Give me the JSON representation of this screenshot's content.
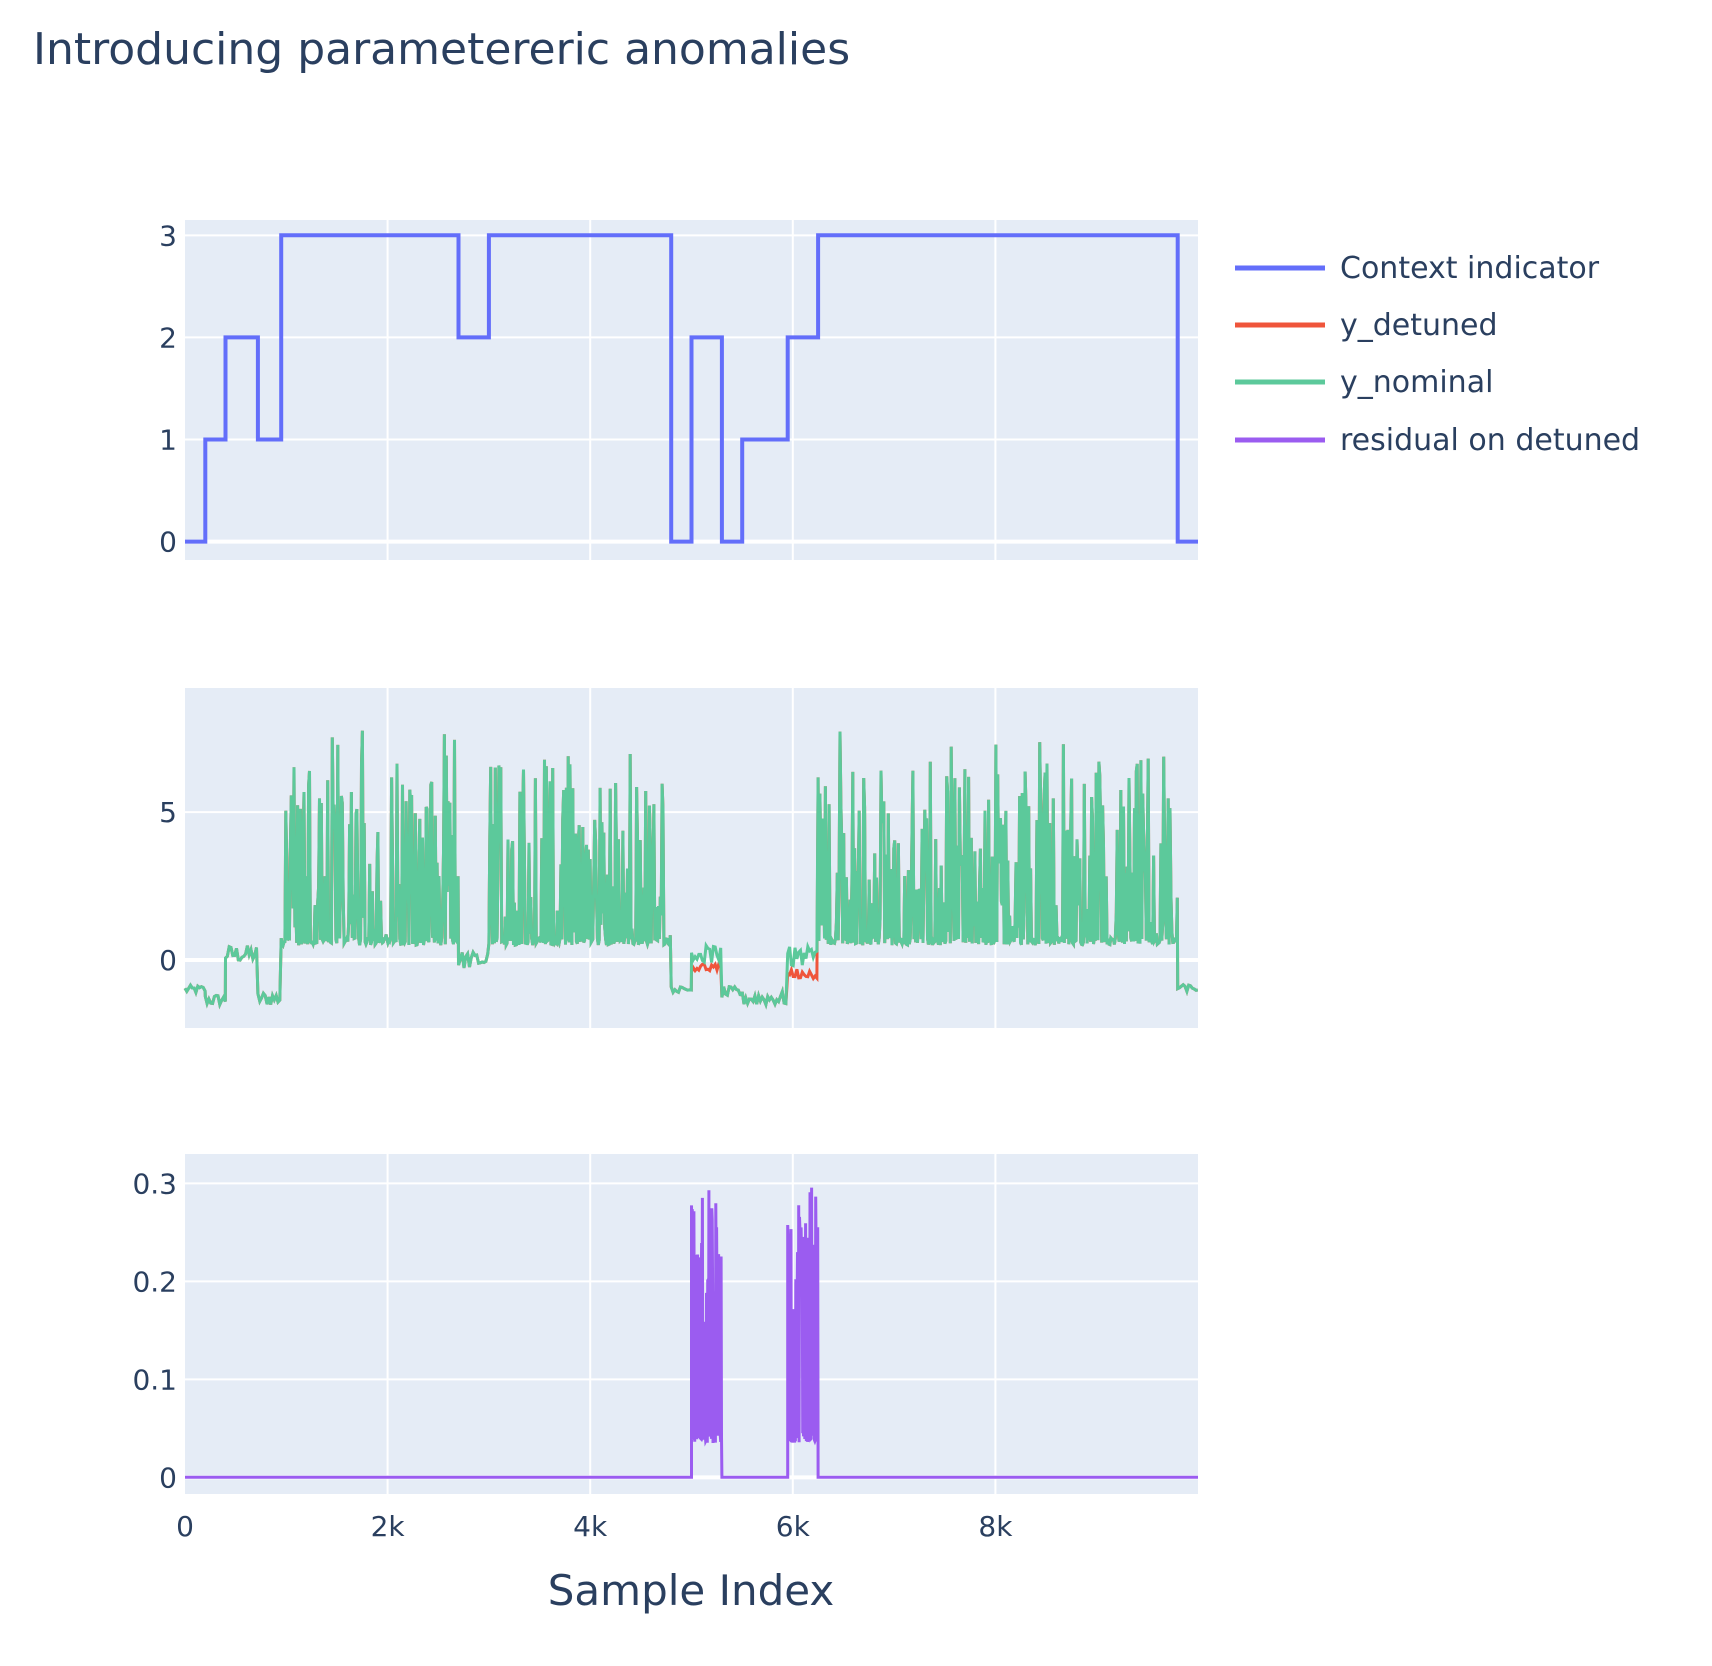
{
  "title": "Introducing parametereric anomalies",
  "xaxis_title": "Sample Index",
  "colors": {
    "plot_bg": "#e5ecf6",
    "grid": "#ffffff",
    "context": "#636efa",
    "detuned": "#ef553b",
    "nominal": "#5cc99b",
    "residual": "#9b5cf0"
  },
  "chart_data": {
    "type": "line",
    "subplots": 3,
    "x_range": [
      0,
      10000
    ],
    "x_ticks": [
      {
        "value": 0,
        "label": "0"
      },
      {
        "value": 2000,
        "label": "2k"
      },
      {
        "value": 4000,
        "label": "4k"
      },
      {
        "value": 6000,
        "label": "6k"
      },
      {
        "value": 8000,
        "label": "8k"
      }
    ],
    "legend": {
      "placement": "top-right",
      "entries": [
        "Context indicator",
        "y_detuned",
        "y_nominal",
        "residual on detuned"
      ]
    },
    "panels": [
      {
        "ylim": [
          -0.18,
          3.15
        ],
        "y_ticks": [
          {
            "value": 0,
            "label": "0"
          },
          {
            "value": 1,
            "label": "1"
          },
          {
            "value": 2,
            "label": "2"
          },
          {
            "value": 3,
            "label": "3"
          }
        ],
        "series": [
          {
            "name": "Context indicator",
            "kind": "step",
            "points": [
              [
                0,
                0
              ],
              [
                200,
                0
              ],
              [
                200,
                1
              ],
              [
                400,
                1
              ],
              [
                400,
                2
              ],
              [
                720,
                2
              ],
              [
                720,
                1
              ],
              [
                950,
                1
              ],
              [
                950,
                3
              ],
              [
                2700,
                3
              ],
              [
                2700,
                2
              ],
              [
                3000,
                2
              ],
              [
                3000,
                3
              ],
              [
                4800,
                3
              ],
              [
                4800,
                0
              ],
              [
                5000,
                0
              ],
              [
                5000,
                2
              ],
              [
                5300,
                2
              ],
              [
                5300,
                0
              ],
              [
                5500,
                0
              ],
              [
                5500,
                1
              ],
              [
                5950,
                1
              ],
              [
                5950,
                2
              ],
              [
                6250,
                2
              ],
              [
                6250,
                3
              ],
              [
                9800,
                3
              ],
              [
                9800,
                0
              ],
              [
                10000,
                0
              ]
            ]
          }
        ]
      },
      {
        "ylim": [
          -2.3,
          9.2
        ],
        "y_ticks": [
          {
            "value": 0,
            "label": "0"
          },
          {
            "value": 5,
            "label": "5"
          }
        ],
        "segments": [
          {
            "x0": 0,
            "x1": 200,
            "base": -1.0,
            "kind": "flat",
            "noise": 0.15
          },
          {
            "x0": 200,
            "x1": 400,
            "base": -1.35,
            "kind": "flat",
            "noise": 0.2
          },
          {
            "x0": 400,
            "x1": 720,
            "base": 0.2,
            "kind": "flat",
            "noise": 0.3
          },
          {
            "x0": 720,
            "x1": 950,
            "base": -1.3,
            "kind": "flat",
            "noise": 0.25
          },
          {
            "x0": 950,
            "x1": 2700,
            "base": 0.5,
            "kind": "spiky",
            "peak_lo": 5.8,
            "peak_hi": 8.3
          },
          {
            "x0": 2700,
            "x1": 3000,
            "base": 0.0,
            "kind": "flat",
            "noise": 0.3
          },
          {
            "x0": 3000,
            "x1": 4800,
            "base": 0.5,
            "kind": "spiky",
            "peak_lo": 5.5,
            "peak_hi": 7.8
          },
          {
            "x0": 4800,
            "x1": 5000,
            "base": -1.0,
            "kind": "flat",
            "noise": 0.1
          },
          {
            "x0": 5000,
            "x1": 5300,
            "base": 0.2,
            "kind": "flat",
            "noise": 0.3,
            "detuned_offset": -0.45
          },
          {
            "x0": 5300,
            "x1": 5500,
            "base": -1.1,
            "kind": "flat",
            "noise": 0.2
          },
          {
            "x0": 5500,
            "x1": 5950,
            "base": -1.3,
            "kind": "flat",
            "noise": 0.25
          },
          {
            "x0": 5950,
            "x1": 6250,
            "base": 0.1,
            "kind": "flat",
            "noise": 0.35,
            "detuned_offset": -0.55
          },
          {
            "x0": 6250,
            "x1": 9800,
            "base": 0.5,
            "kind": "spiky",
            "peak_lo": 5.5,
            "peak_hi": 8.0
          },
          {
            "x0": 9800,
            "x1": 10000,
            "base": -0.95,
            "kind": "flat",
            "noise": 0.12
          }
        ],
        "series": [
          {
            "name": "y_detuned"
          },
          {
            "name": "y_nominal"
          }
        ]
      },
      {
        "ylim": [
          -0.017,
          0.33
        ],
        "y_ticks": [
          {
            "value": 0,
            "label": "0"
          },
          {
            "value": 0.1,
            "label": "0.1"
          },
          {
            "value": 0.2,
            "label": "0.2"
          },
          {
            "value": 0.3,
            "label": "0.3"
          }
        ],
        "series": [
          {
            "name": "residual on detuned",
            "baseline": 0,
            "bursts": [
              {
                "x0": 5000,
                "x1": 5300,
                "low": 0.035,
                "high_lo": 0.2,
                "high_hi": 0.31
              },
              {
                "x0": 5950,
                "x1": 6250,
                "low": 0.035,
                "high_lo": 0.27,
                "high_hi": 0.31
              }
            ]
          }
        ]
      }
    ]
  }
}
